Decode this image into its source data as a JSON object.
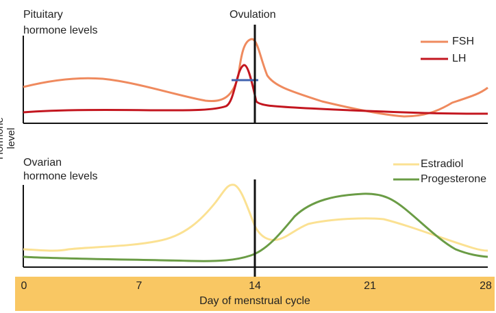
{
  "ylabel": "Hormone level",
  "xaxis_title": "Day of menstrual cycle",
  "ovulation_label": "Ovulation",
  "ticks": [
    "0",
    "7",
    "14",
    "21",
    "28"
  ],
  "panels": [
    {
      "title_line1": "Pituitary",
      "title_line2": "hormone levels",
      "legend": [
        {
          "name": "FSH",
          "color": "#ef8a5e"
        },
        {
          "name": "LH",
          "color": "#c3161f"
        }
      ]
    },
    {
      "title_line1": "Ovarian",
      "title_line2": "hormone levels",
      "legend": [
        {
          "name": "Estradiol",
          "color": "#fbe192"
        },
        {
          "name": "Progesterone",
          "color": "#6a9c45"
        }
      ]
    }
  ],
  "colors": {
    "band": "#f9c763",
    "fsh": "#ef8a5e",
    "lh": "#c3161f",
    "estradiol": "#fbe192",
    "progesterone": "#6a9c45",
    "threshold_marker": "#4063b0",
    "axis": "#111111"
  }
}
